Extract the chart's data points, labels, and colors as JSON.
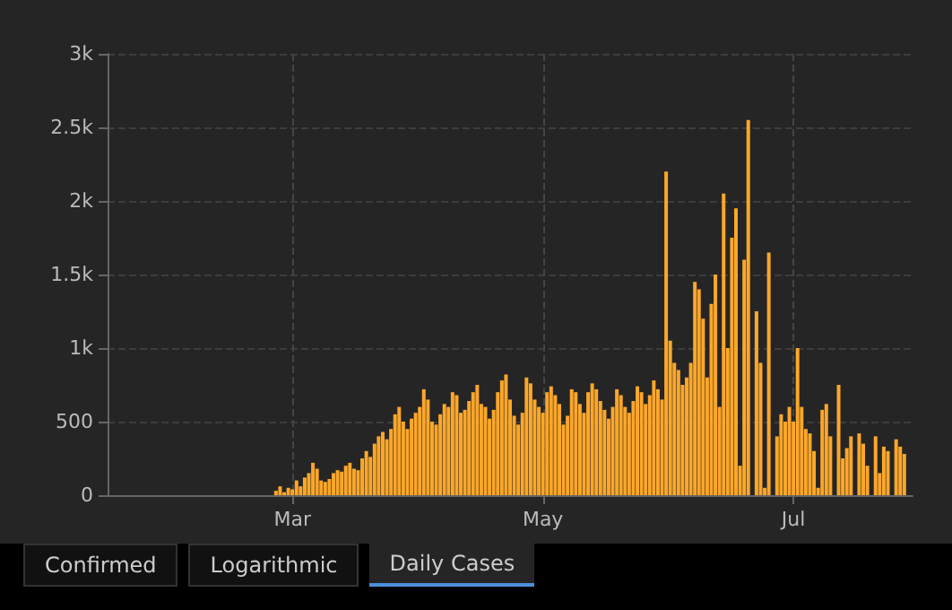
{
  "chart_data": {
    "type": "bar",
    "color": "#fca72a",
    "x": [
      "--02-26",
      "--02-27",
      "--02-28",
      "--02-29",
      "--03-01",
      "--03-02",
      "--03-03",
      "--03-04",
      "--03-05",
      "--03-06",
      "--03-07",
      "--03-08",
      "--03-09",
      "--03-10",
      "--03-11",
      "--03-12",
      "--03-13",
      "--03-14",
      "--03-15",
      "--03-16",
      "--03-17",
      "--03-18",
      "--03-19",
      "--03-20",
      "--03-21",
      "--03-22",
      "--03-23",
      "--03-24",
      "--03-25",
      "--03-26",
      "--03-27",
      "--03-28",
      "--03-29",
      "--03-30",
      "--03-31",
      "--04-01",
      "--04-02",
      "--04-03",
      "--04-04",
      "--04-05",
      "--04-06",
      "--04-07",
      "--04-08",
      "--04-09",
      "--04-10",
      "--04-11",
      "--04-12",
      "--04-13",
      "--04-14",
      "--04-15",
      "--04-16",
      "--04-17",
      "--04-18",
      "--04-19",
      "--04-20",
      "--04-21",
      "--04-22",
      "--04-23",
      "--04-24",
      "--04-25",
      "--04-26",
      "--04-27",
      "--04-28",
      "--04-29",
      "--04-30",
      "--05-01",
      "--05-02",
      "--05-03",
      "--05-04",
      "--05-05",
      "--05-06",
      "--05-07",
      "--05-08",
      "--05-09",
      "--05-10",
      "--05-11",
      "--05-12",
      "--05-13",
      "--05-14",
      "--05-15",
      "--05-16",
      "--05-17",
      "--05-18",
      "--05-19",
      "--05-20",
      "--05-21",
      "--05-22",
      "--05-23",
      "--05-24",
      "--05-25",
      "--05-26",
      "--05-27",
      "--05-28",
      "--05-29",
      "--05-30",
      "--05-31",
      "--06-01",
      "--06-02",
      "--06-03",
      "--06-04",
      "--06-05",
      "--06-06",
      "--06-07",
      "--06-08",
      "--06-09",
      "--06-10",
      "--06-11",
      "--06-12",
      "--06-13",
      "--06-14",
      "--06-15",
      "--06-16",
      "--06-17",
      "--06-18",
      "--06-19",
      "--06-20",
      "--06-21",
      "--06-22",
      "--06-23",
      "--06-24",
      "--06-25",
      "--06-26",
      "--06-27",
      "--06-28",
      "--06-29",
      "--06-30",
      "--07-01",
      "--07-02",
      "--07-03",
      "--07-04",
      "--07-05",
      "--07-06",
      "--07-07",
      "--07-08",
      "--07-09",
      "--07-10",
      "--07-11",
      "--07-12",
      "--07-13",
      "--07-14",
      "--07-15",
      "--07-16",
      "--07-17",
      "--07-18",
      "--07-19",
      "--07-20",
      "--07-21",
      "--07-22",
      "--07-23",
      "--07-24",
      "--07-25",
      "--07-26",
      "--07-27",
      "--07-28"
    ],
    "values": [
      30,
      60,
      20,
      50,
      40,
      100,
      60,
      120,
      150,
      220,
      180,
      100,
      90,
      110,
      150,
      170,
      160,
      200,
      220,
      180,
      170,
      250,
      300,
      260,
      350,
      400,
      430,
      380,
      450,
      550,
      600,
      500,
      450,
      520,
      560,
      600,
      720,
      650,
      500,
      480,
      550,
      620,
      600,
      700,
      680,
      560,
      580,
      640,
      700,
      750,
      620,
      600,
      520,
      580,
      700,
      780,
      820,
      650,
      540,
      480,
      560,
      800,
      760,
      650,
      600,
      560,
      700,
      740,
      680,
      620,
      480,
      540,
      720,
      700,
      620,
      560,
      700,
      760,
      720,
      640,
      580,
      520,
      600,
      720,
      680,
      600,
      560,
      640,
      740,
      700,
      620,
      680,
      780,
      720,
      650,
      2200,
      1050,
      900,
      850,
      750,
      800,
      900,
      1450,
      1400,
      1200,
      800,
      1300,
      1500,
      600,
      2050,
      1000,
      1750,
      1950,
      200,
      1600,
      2550,
      null,
      1250,
      900,
      50,
      1650,
      null,
      400,
      550,
      500,
      600,
      500,
      1000,
      600,
      450,
      420,
      300,
      50,
      580,
      620,
      400,
      null,
      750,
      250,
      320,
      400,
      null,
      420,
      350,
      200,
      null,
      400,
      150,
      330,
      300,
      null,
      380,
      330,
      280
    ],
    "xlim": [
      "--01-16",
      "--07-30"
    ],
    "xticks": [
      {
        "value": "--03-01",
        "label": "Mar"
      },
      {
        "value": "--05-01",
        "label": "May"
      },
      {
        "value": "--07-01",
        "label": "Jul"
      }
    ],
    "ylim": [
      0,
      3000
    ],
    "yticks": [
      0,
      500,
      {
        "value": 1000,
        "label": "1k"
      },
      {
        "value": 1500,
        "label": "1.5k"
      },
      {
        "value": 2000,
        "label": "2k"
      },
      {
        "value": 2500,
        "label": "2.5k"
      },
      {
        "value": 3000,
        "label": "3k"
      }
    ],
    "grid": true,
    "annotations": [
      "Confirmed",
      "Logarithmic",
      "Daily Cases"
    ]
  }
}
